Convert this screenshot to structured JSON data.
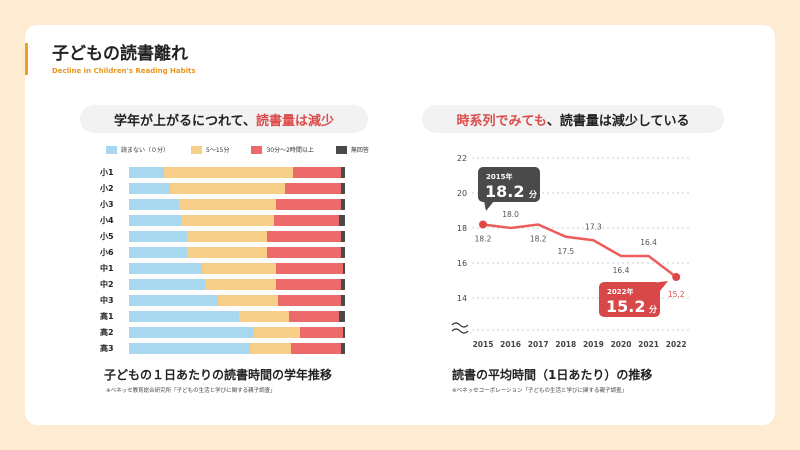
{
  "header": {
    "title": "子どもの読書離れ",
    "subtitle": "Decline in Children's Reading Habits"
  },
  "left": {
    "headline_plain": "学年が上がるにつれて、",
    "headline_accent": "読書量は減少",
    "caption": "子どもの１日あたりの読書時間の学年推移",
    "source": "※ベネッセ教育総合研究所「子どもの生活と学びに関する親子調査」"
  },
  "right": {
    "headline_accent": "時系列でみても",
    "headline_plain": "、読書量は減少している",
    "caption": "読書の平均時間（1日あたり）の推移",
    "source": "※ベネッセコーポレーション「子どもの生活と学びに関する親子調査」",
    "callout_start": {
      "year": "2015年",
      "value": "18.2",
      "unit": "分"
    },
    "callout_end": {
      "year": "2022年",
      "value": "15.2",
      "unit": "分"
    }
  },
  "chart_data": [
    {
      "type": "bar",
      "orientation": "horizontal",
      "stacked": true,
      "unit": "%",
      "categories": [
        "小1",
        "小2",
        "小3",
        "小4",
        "小5",
        "小6",
        "中1",
        "中2",
        "中3",
        "高1",
        "高2",
        "高3"
      ],
      "series": [
        {
          "name": "読まない（０分）",
          "color": "#a8d8f0",
          "values": [
            16,
            19,
            23,
            24,
            27,
            27,
            34,
            35,
            41,
            51,
            58,
            56
          ]
        },
        {
          "name": "5〜15分",
          "color": "#f8cf88",
          "values": [
            60,
            53,
            45,
            43,
            37,
            37,
            34,
            33,
            28,
            23,
            21,
            19
          ]
        },
        {
          "name": "30分〜2時間以上",
          "color": "#ec6a6a",
          "values": [
            22,
            26,
            30,
            30,
            34,
            34,
            31,
            30,
            29,
            23,
            20,
            23
          ]
        },
        {
          "name": "無回答",
          "color": "#4a4a4a",
          "values": [
            2,
            2,
            2,
            3,
            2,
            2,
            1,
            2,
            2,
            3,
            1,
            2
          ]
        }
      ]
    },
    {
      "type": "line",
      "x": [
        "2015",
        "2016",
        "2017",
        "2018",
        "2019",
        "2020",
        "2021",
        "2022"
      ],
      "values": [
        18.2,
        18.0,
        18.2,
        17.5,
        17.3,
        16.4,
        16.4,
        15.2
      ],
      "ylim": [
        13,
        22
      ],
      "yticks": [
        "22",
        "20",
        "18",
        "16",
        "14"
      ],
      "axis_break": true,
      "grid": true,
      "color": "#ec5c5c"
    }
  ]
}
